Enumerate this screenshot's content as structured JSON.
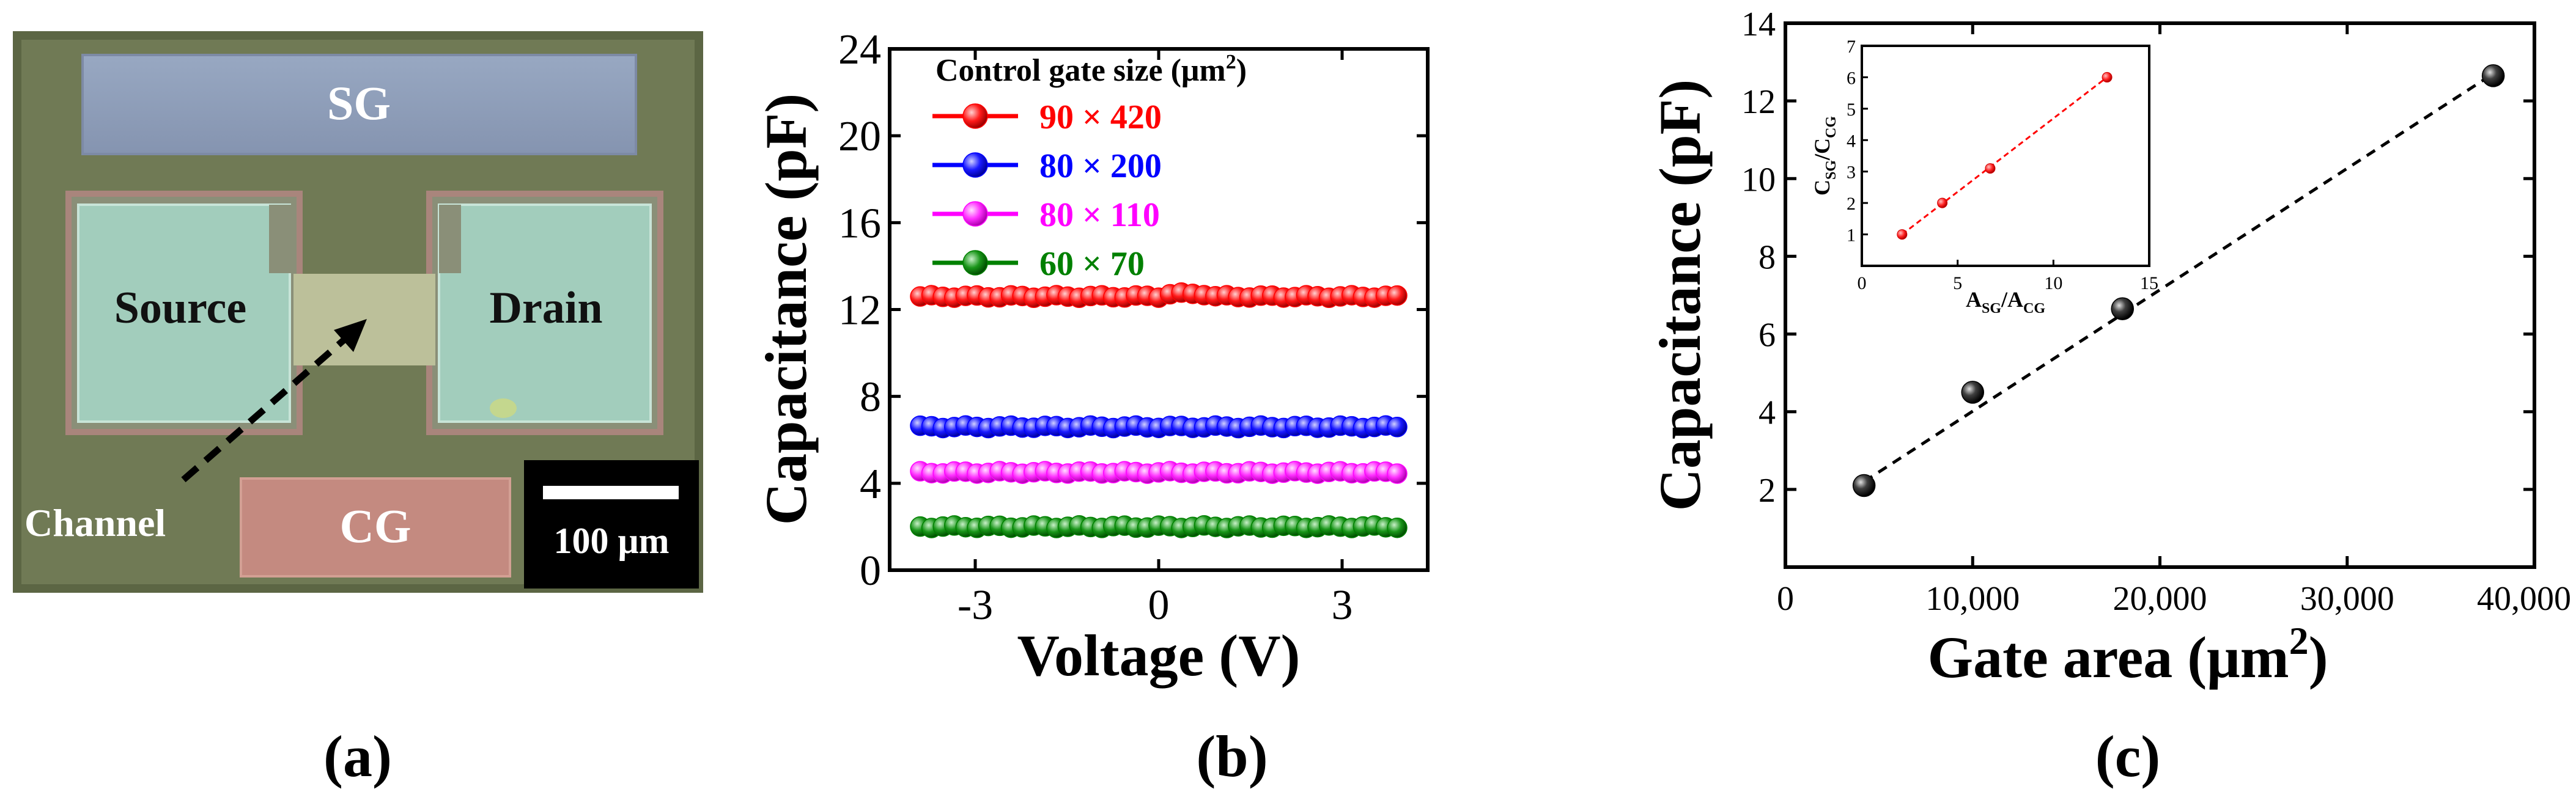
{
  "panels": {
    "a": {
      "label": "(a)",
      "regions": {
        "sg": "SG",
        "source": "Source",
        "drain": "Drain",
        "cg": "CG",
        "channel": "Channel"
      },
      "scale_bar": "100 μm",
      "colors": {
        "background": "#707a55",
        "sg": "#8c9bb8",
        "pad": "#a2cdbc",
        "channel": "#bcc09a",
        "cg": "#c48a80",
        "scale_box": "#000000"
      }
    },
    "b": {
      "label": "(b)"
    },
    "c": {
      "label": "(c)"
    }
  },
  "chart_data": [
    {
      "id": "b",
      "type": "line",
      "title": "",
      "xlabel": "Voltage (V)",
      "ylabel": "Capacitance (pF)",
      "xlim": [
        -4.4,
        4.4
      ],
      "ylim": [
        0,
        24
      ],
      "xticks": [
        -3,
        0,
        3
      ],
      "xtick_labels": [
        "-3",
        "0",
        "3"
      ],
      "yticks": [
        0,
        4,
        8,
        12,
        16,
        20,
        24
      ],
      "ytick_labels": [
        "0",
        "4",
        "8",
        "12",
        "16",
        "20",
        "24"
      ],
      "legend_title": "Control gate size (μm²)",
      "legend_title_parts": {
        "before": "Control gate size (μm",
        "sup": "2",
        "after": ")"
      },
      "legend_position": "top-left",
      "x_range": [
        -3.9,
        3.9
      ],
      "n_points": 43,
      "series": [
        {
          "name": "90 × 420",
          "color": "#ff0000",
          "level": 12.6
        },
        {
          "name": "80 × 200",
          "color": "#0000ff",
          "level": 6.6
        },
        {
          "name": "80 × 110",
          "color": "#ff00ff",
          "level": 4.5
        },
        {
          "name": "60 × 70",
          "color": "#008000",
          "level": 2.0
        }
      ]
    },
    {
      "id": "c",
      "type": "scatter",
      "title": "",
      "xlabel": "Gate area (μm²)",
      "xlabel_parts": {
        "before": "Gate area (μm",
        "sup": "2",
        "after": ")"
      },
      "ylabel": "Capacitance (pF)",
      "xlim": [
        0,
        40000
      ],
      "ylim": [
        0,
        14
      ],
      "xticks": [
        0,
        10000,
        20000,
        30000,
        40000
      ],
      "xtick_labels": [
        "0",
        "10,000",
        "20,000",
        "30,000",
        "40,000"
      ],
      "yticks": [
        2,
        4,
        6,
        8,
        10,
        12,
        14
      ],
      "ytick_labels": [
        "2",
        "4",
        "6",
        "8",
        "10",
        "12",
        "14"
      ],
      "points": {
        "x": [
          4200,
          10000,
          18000,
          37800
        ],
        "y": [
          2.1,
          4.5,
          6.65,
          12.65
        ]
      },
      "point_color": "#000000",
      "fit_line": {
        "x": [
          4200,
          37800
        ],
        "y": [
          2.2,
          12.7
        ],
        "style": "dashed"
      },
      "inset": {
        "type": "scatter",
        "xlabel": "ASG/ACG",
        "ylabel": "CSG/CCG",
        "xlim": [
          0,
          15
        ],
        "ylim": [
          0,
          7
        ],
        "xticks": [
          0,
          5,
          10,
          15
        ],
        "xtick_labels": [
          "0",
          "5",
          "10",
          "15"
        ],
        "yticks": [
          1,
          2,
          3,
          4,
          5,
          6,
          7
        ],
        "ytick_labels": [
          "1",
          "2",
          "3",
          "4",
          "5",
          "6",
          "7"
        ],
        "points": {
          "x": [
            2.1,
            4.2,
            6.7,
            12.8
          ],
          "y": [
            1.0,
            2.0,
            3.1,
            6.0
          ]
        },
        "point_color": "#ff0000",
        "fit_line": {
          "x": [
            2.1,
            12.8
          ],
          "y": [
            1.0,
            6.0
          ],
          "style": "dashed"
        },
        "xlabel_parts": {
          "main1": "A",
          "sub1": "SG",
          "mid": "/A",
          "sub2": "CG"
        },
        "ylabel_parts": {
          "main1": "C",
          "sub1": "SG",
          "mid": "/C",
          "sub2": "CG"
        }
      }
    }
  ]
}
